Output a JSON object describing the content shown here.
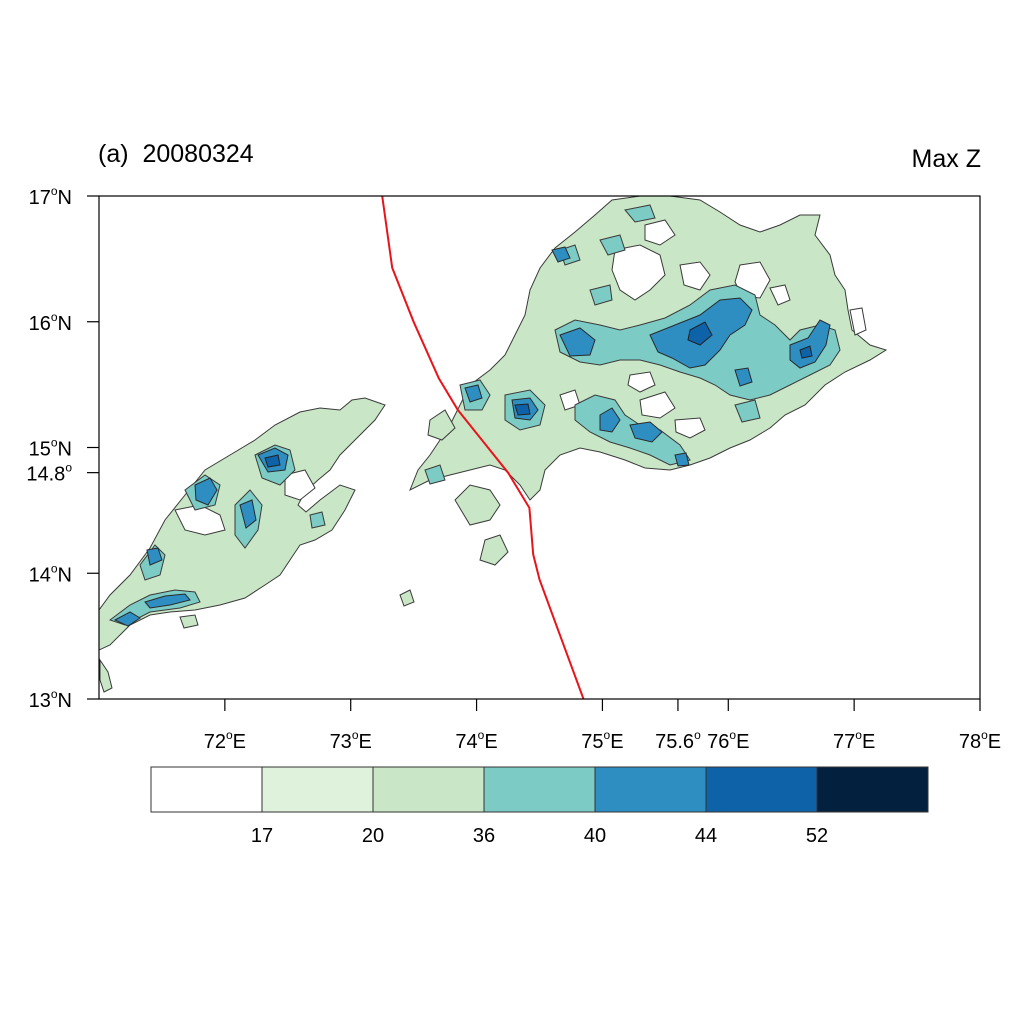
{
  "panel_label": "(a)",
  "date": "20080324",
  "variable": "Max Z",
  "map": {
    "lon_range": [
      71,
      78
    ],
    "lat_range": [
      13,
      17
    ],
    "x_ticks": [
      {
        "value": 72,
        "label": "72°E"
      },
      {
        "value": 73,
        "label": "73°E"
      },
      {
        "value": 74,
        "label": "74°E"
      },
      {
        "value": 75,
        "label": "75°E"
      },
      {
        "value": 75.6,
        "label": "75.6°"
      },
      {
        "value": 76,
        "label": "76°E"
      },
      {
        "value": 77,
        "label": "77°E"
      },
      {
        "value": 78,
        "label": "78°E"
      }
    ],
    "y_ticks": [
      {
        "value": 13,
        "label": "13°N"
      },
      {
        "value": 14,
        "label": "14°N"
      },
      {
        "value": 14.8,
        "label": "14.8°"
      },
      {
        "value": 15,
        "label": "15°N"
      },
      {
        "value": 16,
        "label": "16°N"
      },
      {
        "value": 17,
        "label": "17°N"
      }
    ],
    "track_line": {
      "color": "#e8141b",
      "points": [
        [
          73.25,
          17.0
        ],
        [
          73.33,
          16.43
        ],
        [
          73.5,
          16.0
        ],
        [
          73.7,
          15.55
        ],
        [
          73.85,
          15.3
        ],
        [
          74.05,
          15.05
        ],
        [
          74.25,
          14.8
        ],
        [
          74.42,
          14.52
        ],
        [
          74.45,
          14.15
        ],
        [
          74.5,
          13.95
        ],
        [
          74.85,
          13.0
        ]
      ]
    }
  },
  "colorbar": {
    "colors": [
      "#ffffff",
      "#def2dc",
      "#c9e7c6",
      "#7ccbc4",
      "#2e8ec2",
      "#0d62a8",
      "#04203f"
    ],
    "labels": [
      "17",
      "20",
      "36",
      "40",
      "44",
      "52"
    ]
  },
  "chart_data": {
    "type": "heatmap",
    "title": "(a)  20080324",
    "subtitle": "Max Z",
    "levels": [
      17,
      20,
      36,
      40,
      44,
      52
    ],
    "xlim": [
      71,
      78
    ],
    "ylim": [
      13,
      17
    ],
    "cells": [
      {
        "lon": 71.0,
        "lat": 13.8,
        "level": 20
      },
      {
        "lon": 71.3,
        "lat": 13.7,
        "level": 44
      },
      {
        "lon": 71.5,
        "lat": 13.75,
        "level": 44
      },
      {
        "lon": 71.7,
        "lat": 13.8,
        "level": 44
      },
      {
        "lon": 71.4,
        "lat": 14.2,
        "level": 44
      },
      {
        "lon": 71.6,
        "lat": 14.4,
        "level": 40
      },
      {
        "lon": 71.85,
        "lat": 14.7,
        "level": 44
      },
      {
        "lon": 72.15,
        "lat": 14.5,
        "level": 40
      },
      {
        "lon": 72.2,
        "lat": 14.3,
        "level": 40
      },
      {
        "lon": 72.35,
        "lat": 14.95,
        "level": 44
      },
      {
        "lon": 72.7,
        "lat": 14.4,
        "level": 36
      },
      {
        "lon": 74.0,
        "lat": 15.3,
        "level": 40
      },
      {
        "lon": 74.4,
        "lat": 15.35,
        "level": 44
      },
      {
        "lon": 74.8,
        "lat": 15.3,
        "level": 40
      },
      {
        "lon": 75.0,
        "lat": 15.15,
        "level": 44
      },
      {
        "lon": 75.3,
        "lat": 15.1,
        "level": 44
      },
      {
        "lon": 75.0,
        "lat": 15.85,
        "level": 44
      },
      {
        "lon": 75.6,
        "lat": 15.85,
        "level": 40
      },
      {
        "lon": 75.7,
        "lat": 16.0,
        "level": 44
      },
      {
        "lon": 76.1,
        "lat": 16.1,
        "level": 44
      },
      {
        "lon": 76.5,
        "lat": 15.75,
        "level": 44
      },
      {
        "lon": 76.05,
        "lat": 15.6,
        "level": 40
      },
      {
        "lon": 76.55,
        "lat": 15.6,
        "level": 40
      },
      {
        "lon": 75.6,
        "lat": 14.85,
        "level": 44
      },
      {
        "lon": 74.7,
        "lat": 16.5,
        "level": 44
      },
      {
        "lon": 75.3,
        "lat": 16.65,
        "level": 40
      },
      {
        "lon": 75.5,
        "lat": 16.8,
        "level": 36
      }
    ]
  }
}
